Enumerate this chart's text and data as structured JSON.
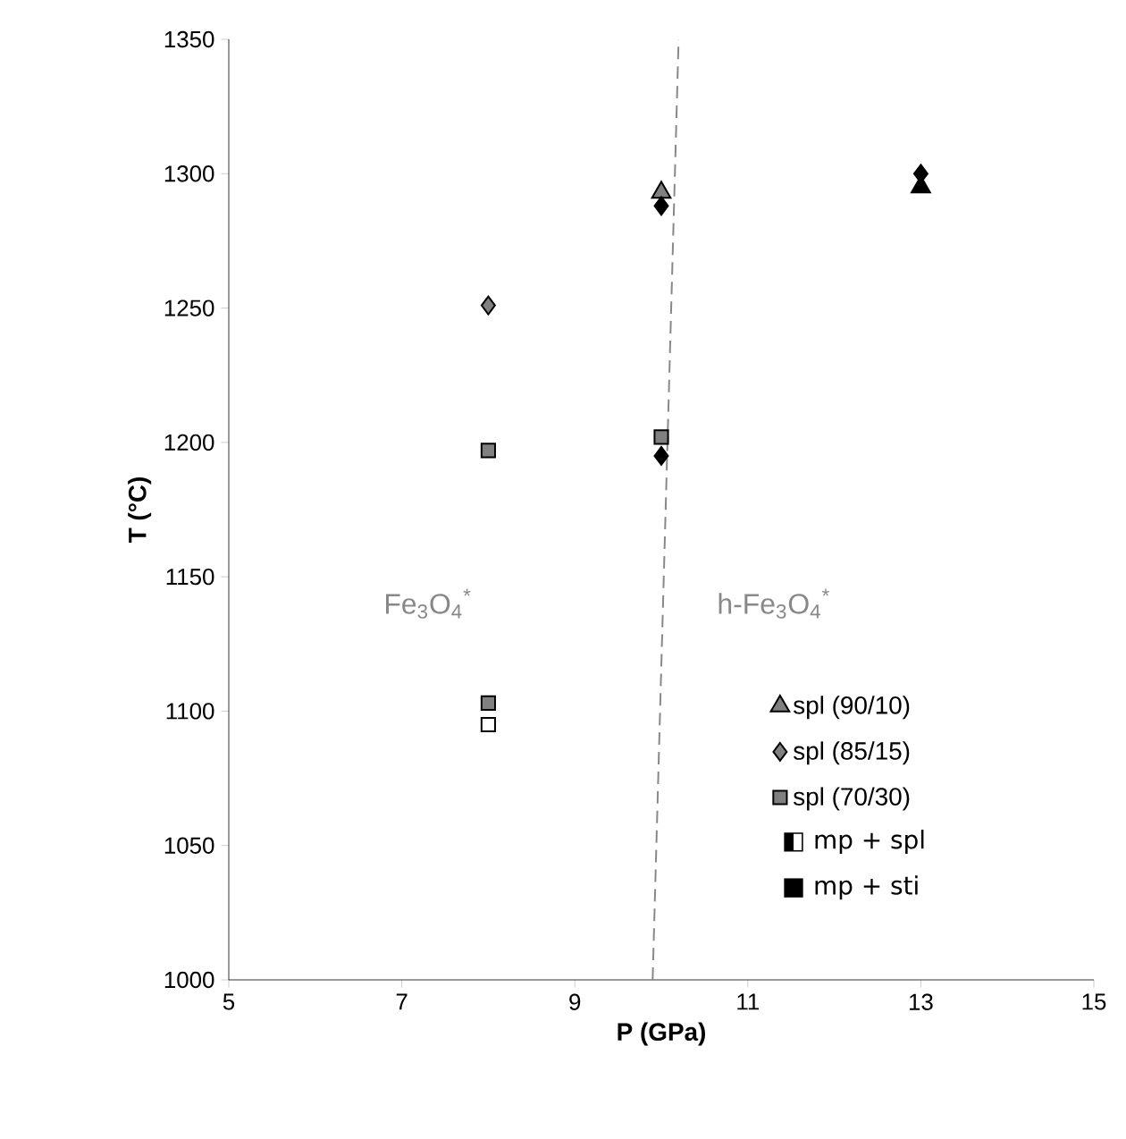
{
  "chart_data": {
    "type": "scatter",
    "xlabel": "P (GPa)",
    "ylabel": "T (°C)",
    "xlim": [
      5,
      15
    ],
    "ylim": [
      1000,
      1350
    ],
    "xticks": [
      5,
      7,
      9,
      11,
      13,
      15
    ],
    "yticks": [
      1000,
      1050,
      1100,
      1150,
      1200,
      1250,
      1300,
      1350
    ],
    "grid": false,
    "legend": "bottom right",
    "series": [
      {
        "name": "spl (90/10)",
        "marker": "triangle",
        "color": "#000000",
        "x": [
          10,
          13
        ],
        "values": [
          1293,
          1295
        ],
        "colors": [
          "#808080",
          "#000000"
        ]
      },
      {
        "name": "spl (85/15)",
        "marker": "diamond",
        "color": "#000000",
        "x": [
          8,
          10,
          10,
          13
        ],
        "values": [
          1251,
          1288,
          1195,
          1300
        ],
        "colors": [
          "#808080",
          "#000000",
          "#000000",
          "#000000"
        ]
      },
      {
        "name": "spl (70/30)",
        "marker": "square",
        "color": "#000000",
        "x": [
          8,
          8,
          10,
          8
        ],
        "values": [
          1197,
          1103,
          1202,
          1095
        ],
        "colors": [
          "#808080",
          "#808080",
          "#808080",
          "#ffffff"
        ]
      },
      {
        "type": "line",
        "marker": "none",
        "line_style": "dashed",
        "color": "#888888",
        "x": [
          9.9,
          10.2
        ],
        "values": [
          1000,
          1350
        ]
      }
    ],
    "annotations": [
      "Fe$_{3}$O$_{4}$$^{*}$",
      "h-Fe$_{3}$O$_{4}$$^{*}$",
      "◧ mp + spl",
      "■ mp + sti"
    ]
  }
}
